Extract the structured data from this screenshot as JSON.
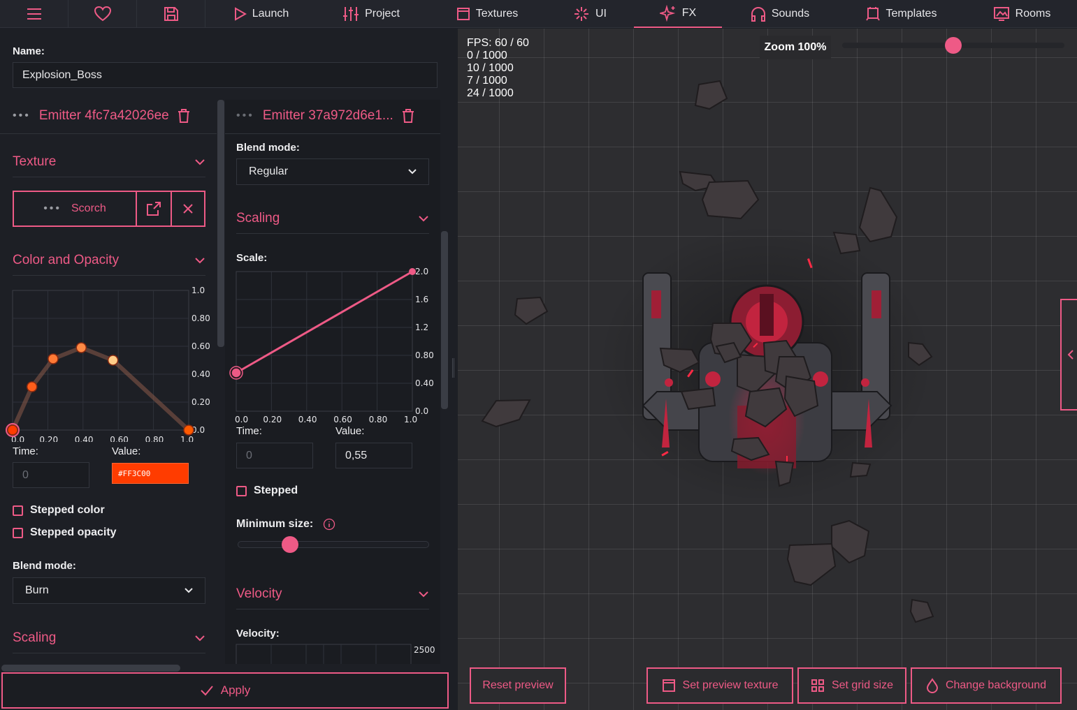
{
  "topbar": {
    "tabs": [
      {
        "label": "Launch",
        "icon": "play-icon"
      },
      {
        "label": "Project",
        "icon": "sliders-icon"
      },
      {
        "label": "Textures",
        "icon": "texture-icon"
      },
      {
        "label": "UI",
        "icon": "ui-icon"
      },
      {
        "label": "FX",
        "icon": "sparkle-icon",
        "active": true
      },
      {
        "label": "Sounds",
        "icon": "headphones-icon"
      },
      {
        "label": "Templates",
        "icon": "template-icon"
      },
      {
        "label": "Rooms",
        "icon": "room-icon"
      }
    ]
  },
  "editor": {
    "name_label": "Name:",
    "name_value": "Explosion_Boss",
    "apply_label": "Apply"
  },
  "emitter1": {
    "title": "Emitter 4fc7a42026ee",
    "texture_section": "Texture",
    "texture_name": "Scorch",
    "color_section": "Color and Opacity",
    "time_label": "Time:",
    "time_value": "0",
    "value_label": "Value:",
    "color_value": "#FF3C00",
    "stepped_color": "Stepped color",
    "stepped_opacity": "Stepped opacity",
    "blend_label": "Blend mode:",
    "blend_value": "Burn",
    "scaling_section": "Scaling",
    "curve": {
      "x_ticks": [
        "0.0",
        "0.20",
        "0.40",
        "0.60",
        "0.80",
        "1.0"
      ],
      "y_ticks": [
        "1.0",
        "0.80",
        "0.60",
        "0.40",
        "0.20",
        "0.0"
      ],
      "points": [
        {
          "t": 0.0,
          "v": 0.0,
          "color": "#FF3C00"
        },
        {
          "t": 0.11,
          "v": 0.31,
          "color": "#FF5E1A"
        },
        {
          "t": 0.23,
          "v": 0.51,
          "color": "#FF7A35"
        },
        {
          "t": 0.39,
          "v": 0.59,
          "color": "#FF8A45"
        },
        {
          "t": 0.57,
          "v": 0.5,
          "color": "#FFCC88"
        },
        {
          "t": 1.0,
          "v": 0.0,
          "color": "#FF5A00"
        }
      ]
    }
  },
  "emitter2": {
    "title": "Emitter 37a972d6e1...",
    "blend_label": "Blend mode:",
    "blend_value": "Regular",
    "scaling_section": "Scaling",
    "scale_label": "Scale:",
    "time_label": "Time:",
    "time_value": "0",
    "value_label": "Value:",
    "value_value": "0,55",
    "stepped": "Stepped",
    "min_size_label": "Minimum size:",
    "min_size_value": 0.27,
    "velocity_section": "Velocity",
    "velocity_label": "Velocity:",
    "velocity_top": "2500",
    "curve": {
      "x_ticks": [
        "0.0",
        "0.20",
        "0.40",
        "0.60",
        "0.80",
        "1.0"
      ],
      "y_ticks": [
        "2.0",
        "1.6",
        "1.2",
        "0.80",
        "0.40",
        "0.0"
      ],
      "points": [
        {
          "t": 0.0,
          "v": 0.55
        },
        {
          "t": 1.0,
          "v": 2.0
        }
      ]
    }
  },
  "viewport": {
    "stats": [
      "FPS: 60 / 60",
      "0 / 1000",
      "10 / 1000",
      "7 / 1000",
      "24 / 1000"
    ],
    "zoom_label": "Zoom 100%",
    "zoom_level": 0.5,
    "buttons": {
      "reset": "Reset preview",
      "preview_texture": "Set preview texture",
      "grid_size": "Set grid size",
      "background": "Change background"
    }
  },
  "colors": {
    "accent": "#EE5A86",
    "bg": "#1D1F25",
    "viewport": "#2D2D30"
  }
}
